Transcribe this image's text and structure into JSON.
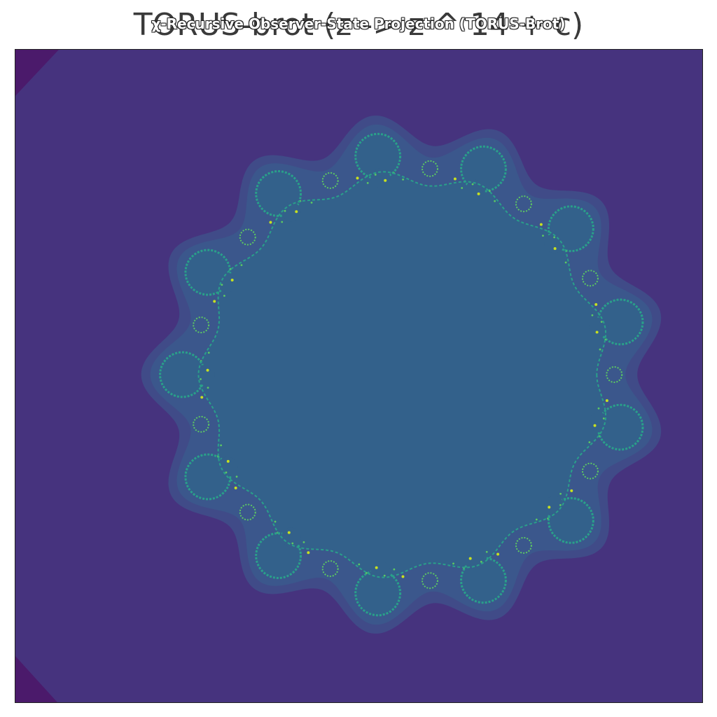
{
  "figure": {
    "title": "TORUS-brot (z -> z ^ 14 + c)",
    "overlay_title": "χ-Recursive Observer-State Projection (TORUS-Brot)"
  },
  "colors": {
    "escape_outer": "#4b1a6b",
    "escape_field": "#46337e",
    "halo_far": "#404b88",
    "halo_near": "#3b578c",
    "interior": "#33618b",
    "boundary_teal": "#2aa08a",
    "boundary_green": "#5dc962",
    "boundary_yellow": "#c7e020"
  },
  "fractal": {
    "power": 14,
    "lobes": 13
  }
}
